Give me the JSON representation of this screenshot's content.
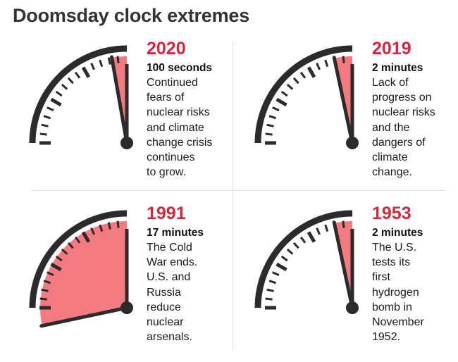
{
  "title": "Doomsday clock extremes",
  "colors": {
    "accent": "#d9263d",
    "fill": "#f47a82",
    "dial": "#2b2b2b"
  },
  "panels": [
    {
      "year": "2020",
      "duration": "100 seconds",
      "minutes": 1.6667,
      "description": "Continued\nfears of\nnuclear risks\nand climate\nchange crisis\ncontinues\nto grow."
    },
    {
      "year": "2019",
      "duration": "2 minutes",
      "minutes": 2,
      "description": "Lack of\nprogress on\nnuclear risks\nand the\ndangers of\nclimate\nchange."
    },
    {
      "year": "1991",
      "duration": "17 minutes",
      "minutes": 17,
      "description": "The Cold\nWar ends.\nU.S. and\nRussia\nreduce\nnuclear\narsenals."
    },
    {
      "year": "1953",
      "duration": "2 minutes",
      "minutes": 2,
      "description": "The U.S.\ntests its\nfirst\nhydrogen\nbomb in\nNovember\n1952."
    }
  ]
}
